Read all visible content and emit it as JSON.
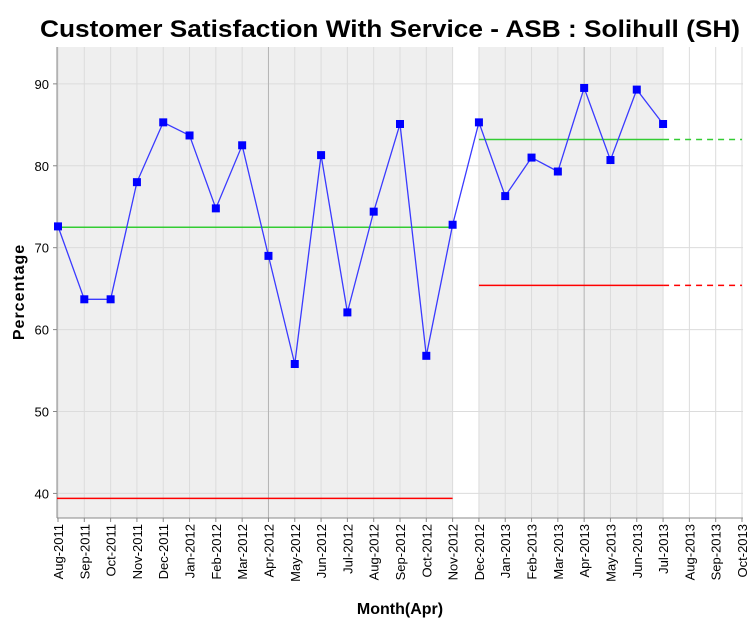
{
  "chart_data": {
    "type": "line",
    "title": "Customer Satisfaction With Service - ASB : Solihull (SH)",
    "x_label": "Month(Apr)",
    "y_label": "Percentage",
    "categories": [
      "Aug-2011",
      "Sep-2011",
      "Oct-2011",
      "Nov-2011",
      "Dec-2011",
      "Jan-2012",
      "Feb-2012",
      "Mar-2012",
      "Apr-2012",
      "May-2012",
      "Jun-2012",
      "Jul-2012",
      "Aug-2012",
      "Sep-2012",
      "Oct-2012",
      "Nov-2012",
      "Dec-2012",
      "Jan-2013",
      "Feb-2013",
      "Mar-2013",
      "Apr-2013",
      "May-2013",
      "Jun-2013",
      "Jul-2013",
      "Aug-2013",
      "Sep-2013",
      "Oct-2013"
    ],
    "series": [
      {
        "color": "#0000ff",
        "line_color": "#3a3aff",
        "values": [
          72.6,
          63.7,
          63.7,
          78.0,
          85.3,
          83.7,
          74.8,
          82.5,
          69.0,
          55.8,
          81.3,
          62.1,
          74.4,
          85.1,
          56.8,
          72.8,
          85.3,
          76.3,
          81.0,
          79.3,
          89.5,
          80.7,
          89.3,
          85.1,
          null,
          null,
          null
        ]
      }
    ],
    "periods": [
      {
        "start": "Aug-2011",
        "end": "Nov-2012",
        "mean": 72.5,
        "lower_limit": 39.4
      },
      {
        "start": "Dec-2012",
        "end": "Jul-2013",
        "mean": 83.2,
        "lower_limit": 65.4,
        "projected_to": "Oct-2013"
      }
    ],
    "mean_color": "#33cc33",
    "limit_color": "#ff0000",
    "shade_color": "#efefef",
    "ylim": [
      37,
      94.5
    ],
    "yticks": [
      40,
      50,
      60,
      70,
      80,
      90
    ],
    "grid": true
  }
}
